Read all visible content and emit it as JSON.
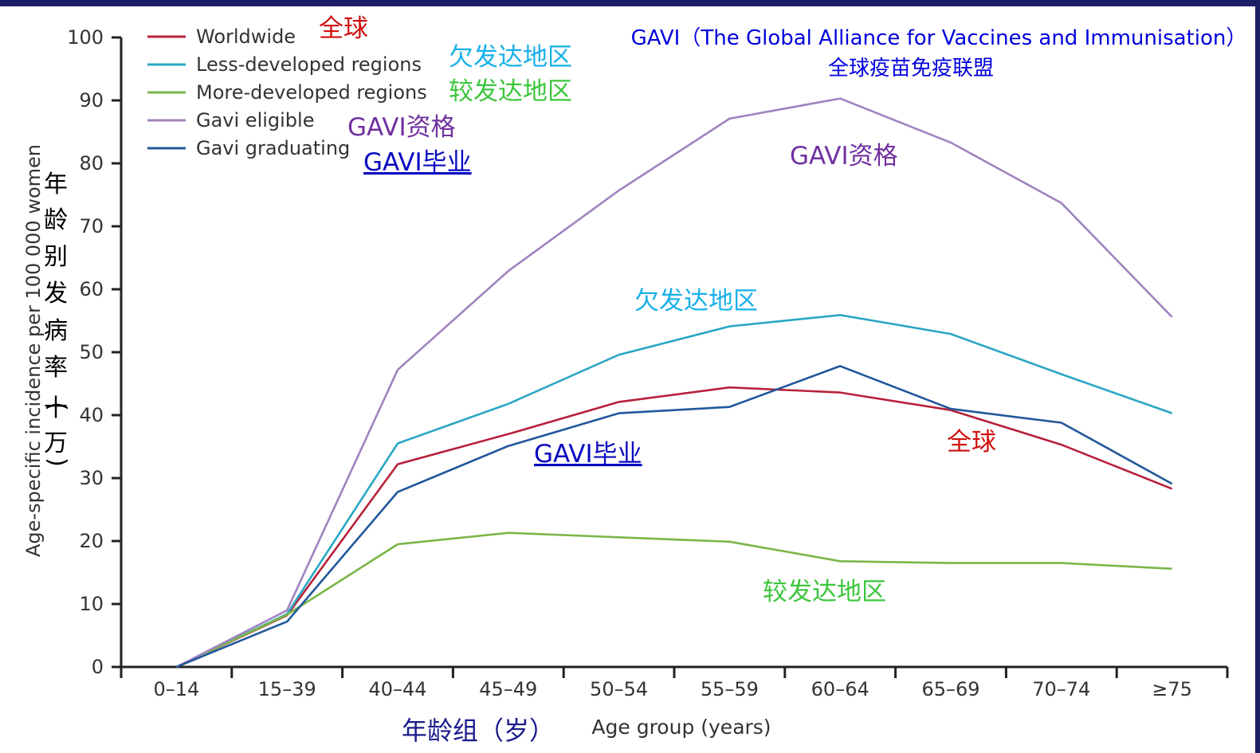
{
  "chart_data": {
    "type": "line",
    "title": "GAVI（The Global Alliance for Vaccines and Immunisation）",
    "subtitle": "全球疫苗免疫联盟",
    "xlabel": "Age group (years)",
    "xlabel_cn": "年龄组（岁）",
    "ylabel": "Age-specific incidence per 100 000 women",
    "ylabel_cn": [
      "年",
      "龄",
      "别",
      "发",
      "病",
      "率",
      "(",
      "十",
      "万",
      ")"
    ],
    "categories": [
      "0–14",
      "15–39",
      "40–44",
      "45–49",
      "50–54",
      "55–59",
      "60–64",
      "65–69",
      "70–74",
      "≥75"
    ],
    "ylim": [
      0,
      100
    ],
    "yticks": [
      "0",
      "10",
      "20",
      "30",
      "40",
      "50",
      "60",
      "70",
      "80",
      "90",
      "100"
    ],
    "legend_position": "top-left",
    "series": [
      {
        "name": "Worldwide",
        "name_cn": "全球",
        "color": "#b8213a",
        "values": [
          0,
          8.2,
          32.2,
          37.0,
          42.1,
          44.4,
          43.6,
          40.8,
          35.3,
          28.3
        ]
      },
      {
        "name": "Less-developed regions",
        "name_cn": "欠发达地区",
        "color": "#2aa7c4",
        "values": [
          0,
          8.4,
          35.5,
          41.8,
          49.6,
          54.1,
          55.9,
          52.9,
          46.5,
          40.3
        ]
      },
      {
        "name": "More-developed regions",
        "name_cn": "较发达地区",
        "color": "#7ab648",
        "values": [
          0,
          8.3,
          19.5,
          21.3,
          20.6,
          19.9,
          16.8,
          16.5,
          16.5,
          15.6
        ]
      },
      {
        "name": "Gavi eligible",
        "name_cn": "GAVI资格",
        "color": "#a083c0",
        "values": [
          0,
          9.0,
          47.2,
          62.9,
          75.7,
          87.1,
          90.3,
          83.3,
          73.7,
          55.6
        ]
      },
      {
        "name": "Gavi graduating",
        "name_cn": "GAVI毕业",
        "color": "#21579b",
        "values": [
          0,
          7.2,
          27.8,
          35.1,
          40.3,
          41.3,
          47.8,
          41.0,
          38.8,
          29.1
        ]
      }
    ],
    "annotations": [
      {
        "text": "全球",
        "color": "#d01010",
        "where": "legend"
      },
      {
        "text": "欠发达地区",
        "color": "#18b0e8",
        "where": "legend"
      },
      {
        "text": "较发达地区",
        "color": "#3cc63c",
        "where": "legend"
      },
      {
        "text": "GAVI资格",
        "color": "#7030a0",
        "where": "legend"
      },
      {
        "text": "GAVI毕业",
        "color": "#0a0ac0",
        "where": "legend"
      },
      {
        "text": "GAVI资格",
        "color": "#7030a0",
        "where": "plot"
      },
      {
        "text": "欠发达地区",
        "color": "#18b0e8",
        "where": "plot"
      },
      {
        "text": "GAVI毕业",
        "color": "#0a0ac0",
        "where": "plot"
      },
      {
        "text": "全球",
        "color": "#d01010",
        "where": "plot"
      },
      {
        "text": "较发达地区",
        "color": "#3cc63c",
        "where": "plot"
      }
    ]
  },
  "colors": {
    "top_bar": "#1c1f66",
    "axis": "#222222",
    "right_border": "#1c1f66"
  }
}
